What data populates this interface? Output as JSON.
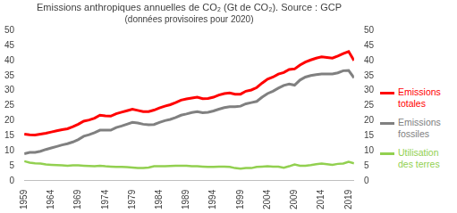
{
  "chart_data": {
    "type": "line",
    "title": "Emissions anthropiques annuelles de CO₂ (Gt de CO₂). Source : GCP",
    "subtitle": "(données provisoires pour 2020)",
    "x": [
      1959,
      1960,
      1961,
      1962,
      1963,
      1964,
      1965,
      1966,
      1967,
      1968,
      1969,
      1970,
      1971,
      1972,
      1973,
      1974,
      1975,
      1976,
      1977,
      1978,
      1979,
      1980,
      1981,
      1982,
      1983,
      1984,
      1985,
      1986,
      1987,
      1988,
      1989,
      1990,
      1991,
      1992,
      1993,
      1994,
      1995,
      1996,
      1997,
      1998,
      1999,
      2000,
      2001,
      2002,
      2003,
      2004,
      2005,
      2006,
      2007,
      2008,
      2009,
      2010,
      2011,
      2012,
      2013,
      2014,
      2015,
      2016,
      2017,
      2018,
      2019,
      2020
    ],
    "series": [
      {
        "name": "Emissions totales",
        "color": "#ff0000",
        "values": [
          15.5,
          15.3,
          15.2,
          15.5,
          15.8,
          16.2,
          16.6,
          17.0,
          17.3,
          18.0,
          18.8,
          19.8,
          20.2,
          20.8,
          21.8,
          21.6,
          21.5,
          22.3,
          22.8,
          23.3,
          23.8,
          23.4,
          23.0,
          23.0,
          23.5,
          24.2,
          24.8,
          25.3,
          26.0,
          26.8,
          27.2,
          27.5,
          27.8,
          27.3,
          27.4,
          27.8,
          28.5,
          29.0,
          29.2,
          28.8,
          28.8,
          29.8,
          30.2,
          31.0,
          32.5,
          33.8,
          34.5,
          35.5,
          36.0,
          37.0,
          37.2,
          38.5,
          39.5,
          40.2,
          40.8,
          41.2,
          41.0,
          40.8,
          41.5,
          42.3,
          43.0,
          40.0
        ]
      },
      {
        "name": "Emissions fossiles",
        "color": "#808080",
        "values": [
          9.0,
          9.4,
          9.4,
          9.8,
          10.4,
          10.9,
          11.4,
          11.9,
          12.3,
          12.9,
          13.7,
          14.8,
          15.3,
          16.0,
          16.8,
          16.8,
          16.8,
          17.7,
          18.2,
          18.8,
          19.4,
          19.2,
          18.8,
          18.6,
          18.7,
          19.4,
          20.0,
          20.4,
          21.0,
          21.8,
          22.2,
          22.7,
          23.0,
          22.6,
          22.8,
          23.2,
          23.8,
          24.3,
          24.6,
          24.6,
          24.8,
          25.6,
          26.0,
          26.4,
          27.8,
          29.0,
          29.8,
          30.8,
          31.7,
          32.2,
          31.8,
          33.5,
          34.5,
          35.0,
          35.3,
          35.5,
          35.5,
          35.5,
          35.9,
          36.6,
          36.7,
          34.2
        ]
      },
      {
        "name": "Utilisation des terres",
        "color": "#92d050",
        "values": [
          6.5,
          6.0,
          5.8,
          5.7,
          5.4,
          5.3,
          5.2,
          5.1,
          5.0,
          5.1,
          5.1,
          5.0,
          4.9,
          4.8,
          5.0,
          4.8,
          4.7,
          4.6,
          4.6,
          4.5,
          4.4,
          4.2,
          4.2,
          4.4,
          4.8,
          4.8,
          4.8,
          4.9,
          5.0,
          5.0,
          5.0,
          4.8,
          4.8,
          4.7,
          4.6,
          4.6,
          4.7,
          4.7,
          4.6,
          4.2,
          4.0,
          4.2,
          4.2,
          4.6,
          4.7,
          4.8,
          4.7,
          4.7,
          4.3,
          4.8,
          5.4,
          5.0,
          5.0,
          5.2,
          5.5,
          5.7,
          5.5,
          5.3,
          5.6,
          5.7,
          6.3,
          5.8
        ]
      }
    ],
    "xlim": [
      1959,
      2020
    ],
    "xticks": [
      1959,
      1964,
      1969,
      1974,
      1979,
      1984,
      1989,
      1994,
      1999,
      2004,
      2009,
      2014,
      2019
    ],
    "ylim": [
      0,
      50
    ],
    "yticks": [
      0,
      5,
      10,
      15,
      20,
      25,
      30,
      35,
      40,
      45,
      50
    ],
    "y2lim": [
      0,
      50
    ],
    "y2ticks": [
      0,
      5,
      10,
      15,
      20,
      25,
      30,
      35,
      40,
      45,
      50
    ],
    "grid": false,
    "legend": "right"
  }
}
